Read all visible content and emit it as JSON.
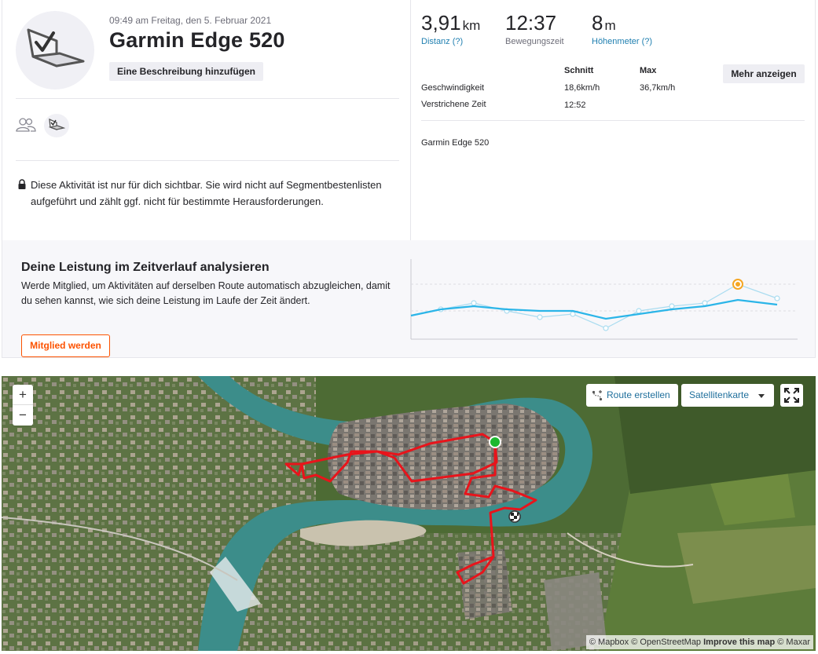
{
  "activity": {
    "date": "09:49 am Freitag, den 5. Februar 2021",
    "title": "Garmin Edge 520",
    "add_description_label": "Eine Beschreibung hinzufügen",
    "privacy_notice": "Diese Aktivität ist nur für dich sichtbar. Sie wird nicht auf Segmentbestenlisten aufgeführt und zählt ggf. nicht für bestimmte Herausforderungen."
  },
  "stats": {
    "distance": {
      "value": "3,91",
      "unit": "km",
      "label": "Distanz (?)"
    },
    "moving_time": {
      "value": "12:37",
      "label": "Bewegungszeit"
    },
    "elevation": {
      "value": "8",
      "unit": "m",
      "label": "Höhenmeter (?)"
    }
  },
  "details": {
    "more_label": "Mehr anzeigen",
    "headers": {
      "avg": "Schnitt",
      "max": "Max"
    },
    "rows": [
      {
        "label": "Geschwindigkeit",
        "avg": "18,6km/h",
        "max": "36,7km/h"
      },
      {
        "label": "Verstrichene Zeit",
        "avg": "12:52",
        "max": ""
      }
    ],
    "device": "Garmin Edge 520"
  },
  "upsell": {
    "title": "Deine Leistung im Zeitverlauf analysieren",
    "text": "Werde Mitglied, um Aktivitäten auf derselben Route automatisch abzugleichen, damit du sehen kannst, wie sich deine Leistung im Laufe der Zeit ändert.",
    "button_label": "Mitglied werden",
    "chart_colors": {
      "line": "#2bb5e8",
      "thin_line": "#a9dcf0",
      "highlight": "#f5a623"
    }
  },
  "map": {
    "zoom_in": "+",
    "zoom_out": "−",
    "route_label": "Route erstellen",
    "layer_label": "Satellitenkarte",
    "attribution": {
      "mapbox": "© Mapbox",
      "osm": "© OpenStreetMap",
      "improve": "Improve this map",
      "maxar": "© Maxar"
    },
    "route_color": "#e8141b",
    "start_color": "#1db82f"
  }
}
